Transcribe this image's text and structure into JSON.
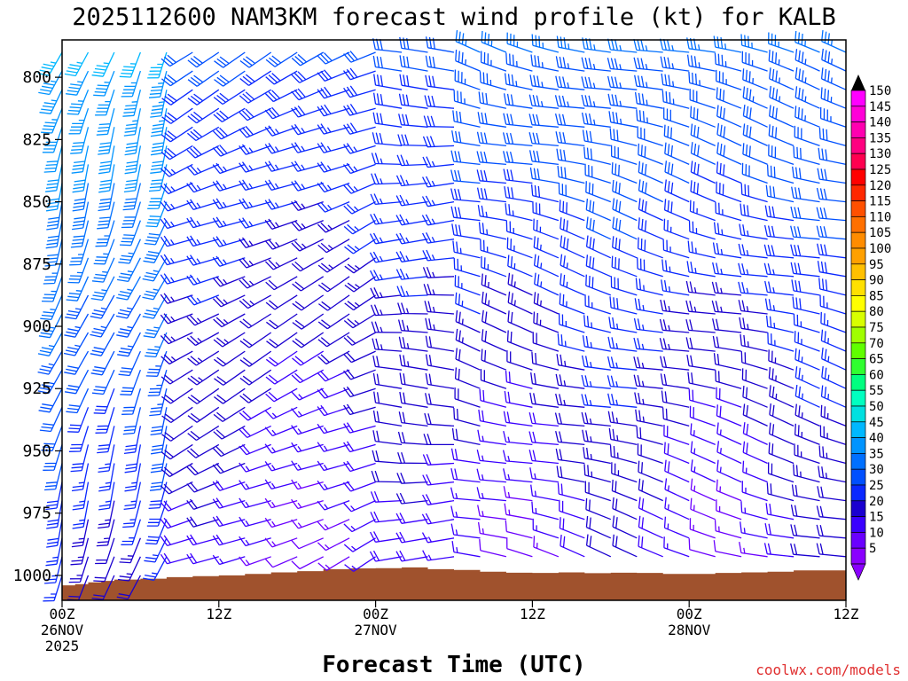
{
  "chart_data": {
    "type": "wind-barb-profile",
    "title": "2025112600 NAM3KM forecast wind profile (kt) for KALB",
    "xlabel": "Forecast Time (UTC)",
    "ylabel": "",
    "credit": "coolwx.com/models",
    "x_hours_range": [
      0,
      60
    ],
    "y_hpa_range": [
      1010,
      785
    ],
    "y_ticks": [
      {
        "value": 800,
        "label": "800"
      },
      {
        "value": 825,
        "label": "825"
      },
      {
        "value": 850,
        "label": "850"
      },
      {
        "value": 875,
        "label": "875"
      },
      {
        "value": 900,
        "label": "900"
      },
      {
        "value": 925,
        "label": "925"
      },
      {
        "value": 950,
        "label": "950"
      },
      {
        "value": 975,
        "label": "975"
      },
      {
        "value": 1000,
        "label": "1000"
      }
    ],
    "x_ticks": [
      {
        "hour": 0,
        "lines": [
          "00Z",
          "26NOV",
          "2025"
        ]
      },
      {
        "hour": 12,
        "lines": [
          "12Z"
        ]
      },
      {
        "hour": 24,
        "lines": [
          "00Z",
          "27NOV"
        ]
      },
      {
        "hour": 36,
        "lines": [
          "12Z"
        ]
      },
      {
        "hour": 48,
        "lines": [
          "00Z",
          "28NOV"
        ]
      },
      {
        "hour": 60,
        "lines": [
          "12Z"
        ]
      }
    ],
    "colorbar": {
      "labels": [
        "5",
        "10",
        "15",
        "20",
        "25",
        "30",
        "35",
        "40",
        "45",
        "50",
        "55",
        "60",
        "65",
        "70",
        "75",
        "80",
        "85",
        "90",
        "95",
        "100",
        "105",
        "110",
        "115",
        "120",
        "125",
        "130",
        "135",
        "140",
        "145",
        "150"
      ],
      "colors": [
        "#8a00ff",
        "#6a00ff",
        "#3a00ff",
        "#1a00d0",
        "#0a28ff",
        "#0050ff",
        "#0070ff",
        "#0094ff",
        "#00b8ff",
        "#00e0e0",
        "#00ffc0",
        "#00ff80",
        "#30ff30",
        "#60ff00",
        "#a0ff00",
        "#d8ff00",
        "#ffff00",
        "#ffe000",
        "#ffc000",
        "#ffa000",
        "#ff8c00",
        "#ff7000",
        "#ff5000",
        "#ff2800",
        "#ff0000",
        "#ff0050",
        "#ff0080",
        "#ff00b0",
        "#ff00d8",
        "#ff00ff"
      ]
    },
    "terrain_color": "#a0522d",
    "terrain_pressure_hpa": [
      {
        "hour": 0,
        "p": 1004.0
      },
      {
        "hour": 1,
        "p": 1003.5
      },
      {
        "hour": 2,
        "p": 1002.8
      },
      {
        "hour": 3,
        "p": 1002.2
      },
      {
        "hour": 4,
        "p": 1001.7
      },
      {
        "hour": 6,
        "p": 1001.3
      },
      {
        "hour": 8,
        "p": 1000.7
      },
      {
        "hour": 10,
        "p": 1000.3
      },
      {
        "hour": 12,
        "p": 1000.0
      },
      {
        "hour": 14,
        "p": 999.4
      },
      {
        "hour": 16,
        "p": 998.8
      },
      {
        "hour": 18,
        "p": 998.3
      },
      {
        "hour": 20,
        "p": 997.5
      },
      {
        "hour": 22,
        "p": 997.2
      },
      {
        "hour": 24,
        "p": 997.1
      },
      {
        "hour": 26,
        "p": 996.8
      },
      {
        "hour": 28,
        "p": 997.5
      },
      {
        "hour": 30,
        "p": 997.8
      },
      {
        "hour": 32,
        "p": 998.5
      },
      {
        "hour": 34,
        "p": 998.9
      },
      {
        "hour": 36,
        "p": 999.0
      },
      {
        "hour": 38,
        "p": 998.8
      },
      {
        "hour": 40,
        "p": 999.1
      },
      {
        "hour": 42,
        "p": 998.9
      },
      {
        "hour": 44,
        "p": 999.0
      },
      {
        "hour": 46,
        "p": 999.4
      },
      {
        "hour": 48,
        "p": 999.4
      },
      {
        "hour": 50,
        "p": 999.0
      },
      {
        "hour": 52,
        "p": 998.8
      },
      {
        "hour": 54,
        "p": 998.5
      },
      {
        "hour": 56,
        "p": 998.0
      },
      {
        "hour": 58,
        "p": 998.0
      },
      {
        "hour": 60,
        "p": 998.0
      }
    ],
    "wind_regimes": [
      {
        "hours": [
          0,
          10
        ],
        "direction_deg": 200,
        "speed_kt": [
          20,
          45
        ]
      },
      {
        "hours": [
          10,
          26
        ],
        "direction_deg": 245,
        "speed_kt": [
          10,
          30
        ]
      },
      {
        "hours": [
          26,
          32
        ],
        "direction_deg": 270,
        "speed_kt": [
          10,
          30
        ]
      },
      {
        "hours": [
          32,
          60
        ],
        "direction_deg": 285,
        "speed_kt": [
          10,
          35
        ]
      }
    ]
  }
}
